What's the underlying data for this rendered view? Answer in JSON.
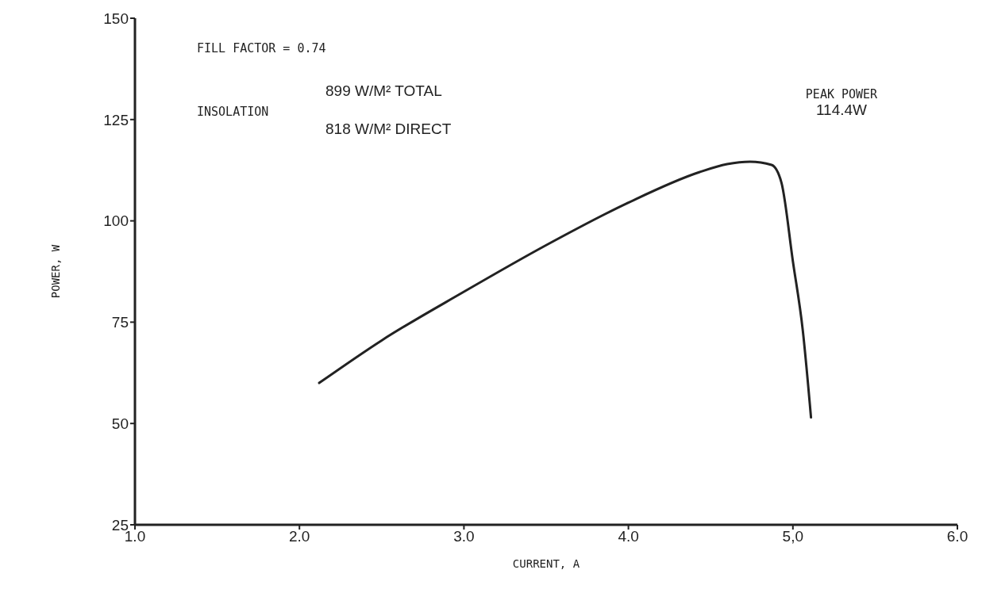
{
  "chart_data": {
    "type": "line",
    "xlabel": "CURRENT, A",
    "ylabel": "POWER, W",
    "x": [
      2.12,
      2.5,
      3.0,
      3.5,
      4.0,
      4.43,
      4.6,
      4.74,
      4.87,
      4.93,
      5.0,
      5.06,
      5.11
    ],
    "series": [
      {
        "color": "#222222",
        "values": [
          60,
          70.5,
          82.5,
          94,
          104.5,
          112,
          114,
          114.6,
          113.8,
          109.5,
          90,
          73,
          51.5
        ]
      }
    ],
    "xlim": [
      1,
      6
    ],
    "ylim": [
      25,
      150
    ],
    "xticks": [
      {
        "value": 1,
        "label": "1.0"
      },
      {
        "value": 2,
        "label": "2.0"
      },
      {
        "value": 3,
        "label": "3.0"
      },
      {
        "value": 4,
        "label": "4.0"
      },
      {
        "value": 5,
        "label": "5,0"
      },
      {
        "value": 6,
        "label": "6.0"
      }
    ],
    "yticks": [
      25,
      50,
      75,
      100,
      125,
      150
    ],
    "grid": false,
    "marker": "none",
    "line_style": "solid",
    "annotations": [
      "FILL FACTOR = 0.74",
      "INSOLATION",
      "899 W/M² TOTAL",
      "818 W/M² DIRECT",
      "PEAK POWER\n114.4W"
    ]
  }
}
